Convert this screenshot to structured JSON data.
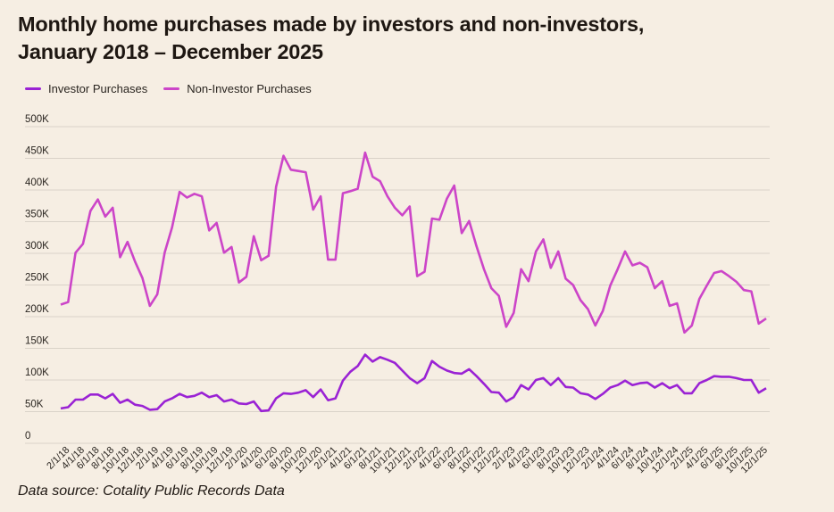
{
  "title_line1": "Monthly home purchases made by investors and non-investors,",
  "title_line2": "January 2018 – December 2025",
  "source": "Data source: Cotality Public Records Data",
  "chart_data": {
    "type": "line",
    "title": "Monthly home purchases made by investors and non-investors, January 2018 – December 2025",
    "xlabel": "",
    "ylabel": "",
    "ylim": [
      0,
      500000
    ],
    "yticks": [
      0,
      50000,
      100000,
      150000,
      200000,
      250000,
      300000,
      350000,
      400000,
      450000,
      500000
    ],
    "ytick_labels": [
      "0",
      "50K",
      "100K",
      "150K",
      "200K",
      "250K",
      "300K",
      "350K",
      "400K",
      "450K",
      "500K"
    ],
    "grid": "horizontal",
    "legend": "top-left",
    "x": [
      "1/1/18",
      "2/1/18",
      "3/1/18",
      "4/1/18",
      "5/1/18",
      "6/1/18",
      "7/1/18",
      "8/1/18",
      "9/1/18",
      "10/1/18",
      "11/1/18",
      "12/1/18",
      "1/1/19",
      "2/1/19",
      "3/1/19",
      "4/1/19",
      "5/1/19",
      "6/1/19",
      "7/1/19",
      "8/1/19",
      "9/1/19",
      "10/1/19",
      "11/1/19",
      "12/1/19",
      "1/1/20",
      "2/1/20",
      "3/1/20",
      "4/1/20",
      "5/1/20",
      "6/1/20",
      "7/1/20",
      "8/1/20",
      "9/1/20",
      "10/1/20",
      "11/1/20",
      "12/1/20",
      "1/1/21",
      "2/1/21",
      "3/1/21",
      "4/1/21",
      "5/1/21",
      "6/1/21",
      "7/1/21",
      "8/1/21",
      "9/1/21",
      "10/1/21",
      "11/1/21",
      "12/1/21",
      "1/1/22",
      "2/1/22",
      "3/1/22",
      "4/1/22",
      "5/1/22",
      "6/1/22",
      "7/1/22",
      "8/1/22",
      "9/1/22",
      "10/1/22",
      "11/1/22",
      "12/1/22",
      "1/1/23",
      "2/1/23",
      "3/1/23",
      "4/1/23",
      "5/1/23",
      "6/1/23",
      "7/1/23",
      "8/1/23",
      "9/1/23",
      "10/1/23",
      "11/1/23",
      "12/1/23",
      "1/1/24",
      "2/1/24",
      "3/1/24",
      "4/1/24",
      "5/1/24",
      "6/1/24",
      "7/1/24",
      "8/1/24",
      "9/1/24",
      "10/1/24",
      "11/1/24",
      "12/1/24",
      "1/1/25",
      "2/1/25",
      "3/1/25",
      "4/1/25",
      "5/1/25",
      "6/1/25",
      "7/1/25",
      "8/1/25",
      "9/1/25",
      "10/1/25",
      "11/1/25",
      "12/1/25"
    ],
    "xtick_labels": [
      "2/1/18",
      "4/1/18",
      "6/1/18",
      "8/1/18",
      "10/1/18",
      "12/1/18",
      "2/1/19",
      "4/1/19",
      "6/1/19",
      "8/1/19",
      "10/1/19",
      "12/1/19",
      "2/1/20",
      "4/1/20",
      "6/1/20",
      "8/1/20",
      "10/1/20",
      "12/1/20",
      "2/1/21",
      "4/1/21",
      "6/1/21",
      "8/1/21",
      "10/1/21",
      "12/1/21",
      "2/1/22",
      "4/1/22",
      "6/1/22",
      "8/1/22",
      "10/1/22",
      "12/1/22",
      "2/1/23",
      "4/1/23",
      "6/1/23",
      "8/1/23",
      "10/1/23",
      "12/1/23",
      "2/1/24",
      "4/1/24",
      "6/1/24",
      "8/1/24",
      "10/1/24",
      "12/1/24",
      "2/1/25",
      "4/1/25",
      "6/1/25",
      "8/1/25",
      "10/1/25",
      "12/1/25"
    ],
    "series": [
      {
        "name": "Investor Purchases",
        "color": "#9a22d4",
        "values": [
          55000,
          57000,
          69000,
          69000,
          77000,
          77000,
          71000,
          78000,
          64000,
          69000,
          61000,
          59000,
          53000,
          54000,
          66000,
          71000,
          78000,
          73000,
          75000,
          80000,
          73000,
          76000,
          66000,
          69000,
          63000,
          62000,
          66000,
          51000,
          52000,
          71000,
          79000,
          78000,
          80000,
          84000,
          73000,
          85000,
          68000,
          71000,
          99000,
          113000,
          122000,
          140000,
          129000,
          136000,
          132000,
          127000,
          115000,
          103000,
          95000,
          103000,
          130000,
          121000,
          115000,
          111000,
          110000,
          117000,
          106000,
          94000,
          81000,
          80000,
          66000,
          73000,
          92000,
          85000,
          100000,
          103000,
          92000,
          103000,
          89000,
          88000,
          79000,
          77000,
          70000,
          78000,
          88000,
          92000,
          99000,
          92000,
          95000,
          96000,
          88000,
          95000,
          87000,
          92000,
          79000,
          79000,
          95000,
          100000,
          106000,
          105000,
          105000,
          103000,
          100000,
          100000,
          80000,
          87000
        ]
      },
      {
        "name": "Non-Investor Purchases",
        "color": "#cc45c8",
        "values": [
          219000,
          223000,
          301000,
          315000,
          367000,
          385000,
          358000,
          372000,
          294000,
          318000,
          287000,
          261000,
          217000,
          235000,
          301000,
          341000,
          397000,
          388000,
          394000,
          390000,
          336000,
          348000,
          301000,
          310000,
          254000,
          263000,
          327000,
          289000,
          296000,
          405000,
          454000,
          432000,
          430000,
          428000,
          369000,
          390000,
          290000,
          290000,
          395000,
          398000,
          402000,
          459000,
          421000,
          414000,
          390000,
          372000,
          360000,
          374000,
          264000,
          271000,
          355000,
          353000,
          386000,
          407000,
          332000,
          351000,
          311000,
          275000,
          245000,
          233000,
          184000,
          206000,
          275000,
          256000,
          303000,
          322000,
          277000,
          303000,
          260000,
          250000,
          226000,
          212000,
          186000,
          209000,
          249000,
          275000,
          303000,
          281000,
          285000,
          278000,
          245000,
          256000,
          217000,
          221000,
          175000,
          186000,
          228000,
          249000,
          269000,
          272000,
          264000,
          255000,
          242000,
          240000,
          189000,
          197000
        ]
      }
    ]
  }
}
